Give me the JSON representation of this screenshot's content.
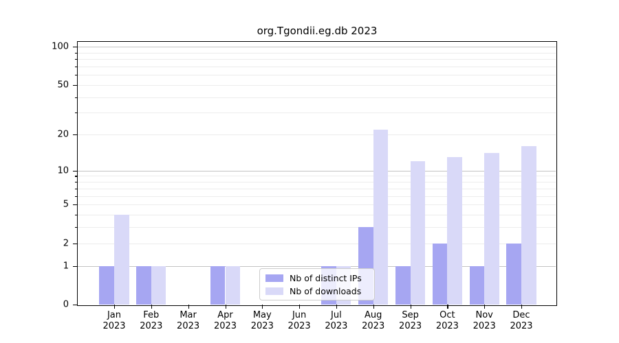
{
  "chart_data": {
    "type": "bar",
    "title": "org.Tgondii.eg.db 2023",
    "year_label": "2023",
    "categories": [
      "Jan",
      "Feb",
      "Mar",
      "Apr",
      "May",
      "Jun",
      "Jul",
      "Aug",
      "Sep",
      "Oct",
      "Nov",
      "Dec"
    ],
    "series": [
      {
        "name": "Nb of distinct IPs",
        "color": "#a6a6f2",
        "values": [
          1,
          1,
          0,
          1,
          0,
          0,
          1,
          3,
          1,
          2,
          1,
          2
        ]
      },
      {
        "name": "Nb of downloads",
        "color": "#d9d9f8",
        "values": [
          4,
          1,
          0,
          1,
          0,
          0,
          1,
          22,
          12,
          13,
          14,
          16
        ]
      }
    ],
    "y_scale": "log1p",
    "ylim": [
      0,
      100
    ],
    "y_ticks": [
      0,
      1,
      2,
      5,
      10,
      20,
      50,
      100
    ],
    "y_minor_gridlines": [
      2,
      3,
      4,
      5,
      6,
      7,
      8,
      9,
      20,
      30,
      40,
      50,
      60,
      70,
      80,
      90
    ],
    "y_major_gridlines": [
      1,
      10,
      100
    ],
    "grid": true,
    "legend_position": "lower center",
    "colors": {
      "major_grid": "#c3c3c3",
      "minor_grid": "#ececec",
      "axis": "#000000",
      "background": "#ffffff"
    }
  }
}
